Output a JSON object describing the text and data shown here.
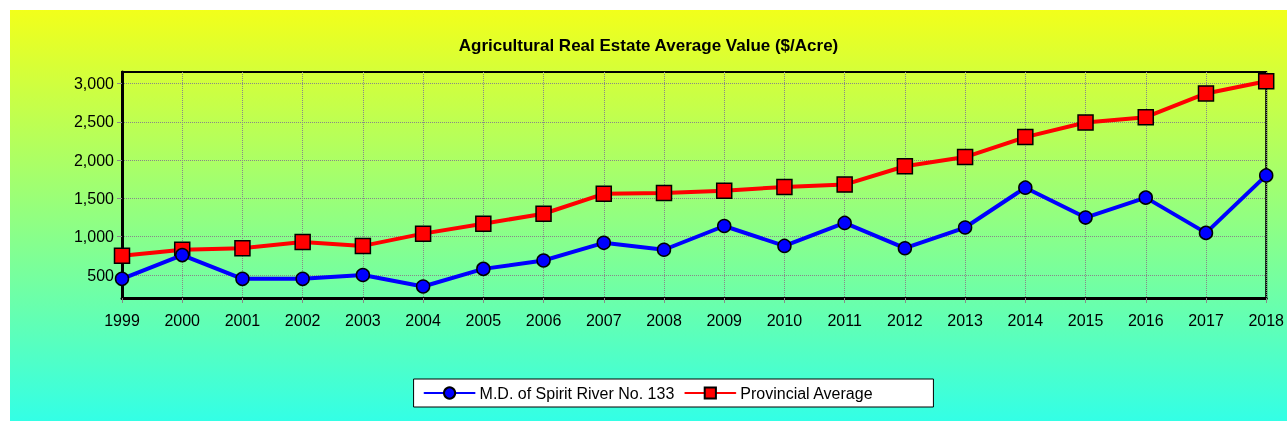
{
  "chart_data": {
    "type": "line",
    "title": "Agricultural Real Estate Average Value ($/Acre)",
    "categories": [
      "1999",
      "2000",
      "2001",
      "2002",
      "2003",
      "2004",
      "2005",
      "2006",
      "2007",
      "2008",
      "2009",
      "2010",
      "2011",
      "2012",
      "2013",
      "2014",
      "2015",
      "2016",
      "2017",
      "2018"
    ],
    "series": [
      {
        "name": "M.D. of Spirit River No. 133",
        "color": "#0000ff",
        "marker": "circle",
        "values": [
          450,
          760,
          450,
          450,
          500,
          350,
          580,
          690,
          920,
          830,
          1140,
          880,
          1180,
          850,
          1120,
          1640,
          1250,
          1510,
          1050,
          1800
        ]
      },
      {
        "name": "Provincial Average",
        "color": "#ff0000",
        "marker": "square",
        "values": [
          750,
          830,
          850,
          930,
          880,
          1040,
          1170,
          1300,
          1560,
          1570,
          1600,
          1650,
          1680,
          1920,
          2040,
          2300,
          2490,
          2560,
          2870,
          3030
        ]
      }
    ],
    "ylim": [
      200,
      3150
    ],
    "yticks": [
      {
        "value": 500,
        "label": "500"
      },
      {
        "value": 1000,
        "label": "1,000"
      },
      {
        "value": 1500,
        "label": "1,500"
      },
      {
        "value": 2000,
        "label": "2,000"
      },
      {
        "value": 2500,
        "label": "2,500"
      },
      {
        "value": 3000,
        "label": "3,000"
      }
    ],
    "grid": true,
    "legend": "bottom",
    "line_style": "solid"
  }
}
